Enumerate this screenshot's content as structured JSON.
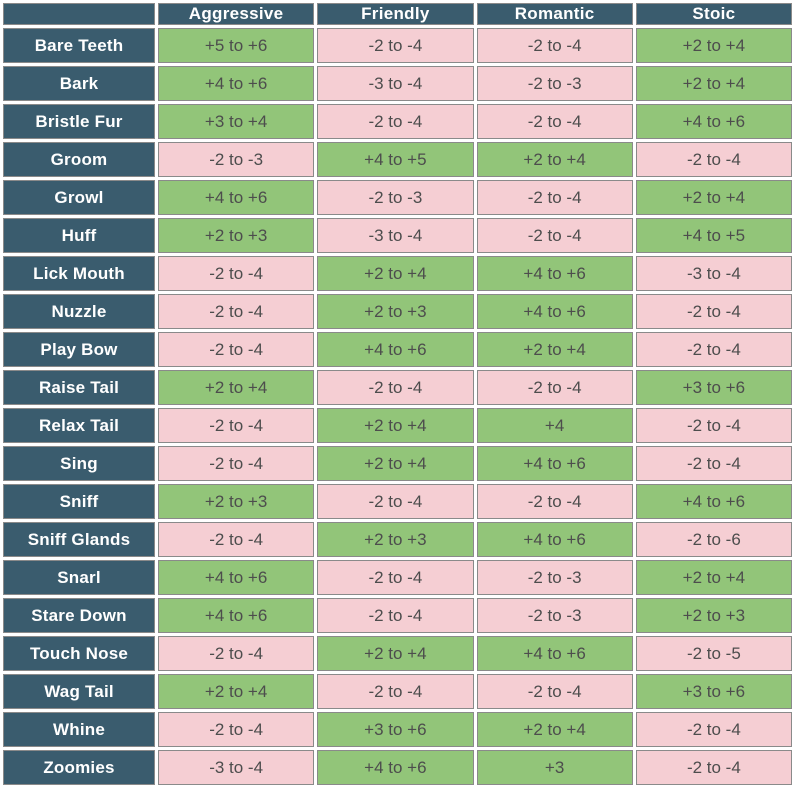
{
  "colors": {
    "header_bg": "#3a5c6e",
    "header_text": "#ffffff",
    "positive_bg": "#92c579",
    "negative_bg": "#f5ced3",
    "value_text": "#4d4d4d",
    "cell_border": "#8a8a8a"
  },
  "chart_data": {
    "type": "table",
    "title": "",
    "corner_label": "",
    "columns": [
      "Aggressive",
      "Friendly",
      "Romantic",
      "Stoic"
    ],
    "legend": {
      "positive": "green cell (stat gain)",
      "negative": "pink cell (stat loss)"
    },
    "rows": [
      {
        "label": "Bare Teeth",
        "cells": [
          {
            "value": "+5 to +6",
            "tone": "positive"
          },
          {
            "value": "-2 to -4",
            "tone": "negative"
          },
          {
            "value": "-2 to -4",
            "tone": "negative"
          },
          {
            "value": "+2 to +4",
            "tone": "positive"
          }
        ]
      },
      {
        "label": "Bark",
        "cells": [
          {
            "value": "+4 to +6",
            "tone": "positive"
          },
          {
            "value": "-3 to -4",
            "tone": "negative"
          },
          {
            "value": "-2 to -3",
            "tone": "negative"
          },
          {
            "value": "+2 to +4",
            "tone": "positive"
          }
        ]
      },
      {
        "label": "Bristle Fur",
        "cells": [
          {
            "value": "+3 to +4",
            "tone": "positive"
          },
          {
            "value": "-2 to -4",
            "tone": "negative"
          },
          {
            "value": "-2 to -4",
            "tone": "negative"
          },
          {
            "value": "+4 to +6",
            "tone": "positive"
          }
        ]
      },
      {
        "label": "Groom",
        "cells": [
          {
            "value": "-2 to -3",
            "tone": "negative"
          },
          {
            "value": "+4 to +5",
            "tone": "positive"
          },
          {
            "value": "+2 to +4",
            "tone": "positive"
          },
          {
            "value": "-2 to -4",
            "tone": "negative"
          }
        ]
      },
      {
        "label": "Growl",
        "cells": [
          {
            "value": "+4 to +6",
            "tone": "positive"
          },
          {
            "value": "-2 to -3",
            "tone": "negative"
          },
          {
            "value": "-2 to -4",
            "tone": "negative"
          },
          {
            "value": "+2 to +4",
            "tone": "positive"
          }
        ]
      },
      {
        "label": "Huff",
        "cells": [
          {
            "value": "+2 to +3",
            "tone": "positive"
          },
          {
            "value": "-3 to -4",
            "tone": "negative"
          },
          {
            "value": "-2 to -4",
            "tone": "negative"
          },
          {
            "value": "+4 to +5",
            "tone": "positive"
          }
        ]
      },
      {
        "label": "Lick Mouth",
        "cells": [
          {
            "value": "-2 to -4",
            "tone": "negative"
          },
          {
            "value": "+2 to +4",
            "tone": "positive"
          },
          {
            "value": "+4 to +6",
            "tone": "positive"
          },
          {
            "value": "-3 to -4",
            "tone": "negative"
          }
        ]
      },
      {
        "label": "Nuzzle",
        "cells": [
          {
            "value": "-2 to -4",
            "tone": "negative"
          },
          {
            "value": "+2 to +3",
            "tone": "positive"
          },
          {
            "value": "+4 to +6",
            "tone": "positive"
          },
          {
            "value": "-2 to -4",
            "tone": "negative"
          }
        ]
      },
      {
        "label": "Play Bow",
        "cells": [
          {
            "value": "-2 to -4",
            "tone": "negative"
          },
          {
            "value": "+4 to +6",
            "tone": "positive"
          },
          {
            "value": "+2 to +4",
            "tone": "positive"
          },
          {
            "value": "-2 to -4",
            "tone": "negative"
          }
        ]
      },
      {
        "label": "Raise Tail",
        "cells": [
          {
            "value": "+2 to +4",
            "tone": "positive"
          },
          {
            "value": "-2 to -4",
            "tone": "negative"
          },
          {
            "value": "-2 to -4",
            "tone": "negative"
          },
          {
            "value": "+3 to +6",
            "tone": "positive"
          }
        ]
      },
      {
        "label": "Relax Tail",
        "cells": [
          {
            "value": "-2 to -4",
            "tone": "negative"
          },
          {
            "value": "+2 to +4",
            "tone": "positive"
          },
          {
            "value": "+4",
            "tone": "positive"
          },
          {
            "value": "-2 to -4",
            "tone": "negative"
          }
        ]
      },
      {
        "label": "Sing",
        "cells": [
          {
            "value": "-2 to -4",
            "tone": "negative"
          },
          {
            "value": "+2 to +4",
            "tone": "positive"
          },
          {
            "value": "+4 to +6",
            "tone": "positive"
          },
          {
            "value": "-2 to -4",
            "tone": "negative"
          }
        ]
      },
      {
        "label": "Sniff",
        "cells": [
          {
            "value": "+2 to +3",
            "tone": "positive"
          },
          {
            "value": "-2 to -4",
            "tone": "negative"
          },
          {
            "value": "-2 to -4",
            "tone": "negative"
          },
          {
            "value": "+4 to +6",
            "tone": "positive"
          }
        ]
      },
      {
        "label": "Sniff Glands",
        "cells": [
          {
            "value": "-2 to -4",
            "tone": "negative"
          },
          {
            "value": "+2 to +3",
            "tone": "positive"
          },
          {
            "value": "+4 to +6",
            "tone": "positive"
          },
          {
            "value": "-2 to -6",
            "tone": "negative"
          }
        ]
      },
      {
        "label": "Snarl",
        "cells": [
          {
            "value": "+4 to +6",
            "tone": "positive"
          },
          {
            "value": "-2 to -4",
            "tone": "negative"
          },
          {
            "value": "-2 to -3",
            "tone": "negative"
          },
          {
            "value": "+2 to +4",
            "tone": "positive"
          }
        ]
      },
      {
        "label": "Stare Down",
        "cells": [
          {
            "value": "+4 to +6",
            "tone": "positive"
          },
          {
            "value": "-2 to -4",
            "tone": "negative"
          },
          {
            "value": "-2 to -3",
            "tone": "negative"
          },
          {
            "value": "+2 to +3",
            "tone": "positive"
          }
        ]
      },
      {
        "label": "Touch Nose",
        "cells": [
          {
            "value": "-2 to -4",
            "tone": "negative"
          },
          {
            "value": "+2 to +4",
            "tone": "positive"
          },
          {
            "value": "+4 to +6",
            "tone": "positive"
          },
          {
            "value": "-2 to -5",
            "tone": "negative"
          }
        ]
      },
      {
        "label": "Wag Tail",
        "cells": [
          {
            "value": "+2 to +4",
            "tone": "positive"
          },
          {
            "value": "-2 to -4",
            "tone": "negative"
          },
          {
            "value": "-2 to -4",
            "tone": "negative"
          },
          {
            "value": "+3 to +6",
            "tone": "positive"
          }
        ]
      },
      {
        "label": "Whine",
        "cells": [
          {
            "value": "-2 to -4",
            "tone": "negative"
          },
          {
            "value": "+3 to +6",
            "tone": "positive"
          },
          {
            "value": "+2 to +4",
            "tone": "positive"
          },
          {
            "value": "-2 to -4",
            "tone": "negative"
          }
        ]
      },
      {
        "label": "Zoomies",
        "cells": [
          {
            "value": "-3 to -4",
            "tone": "negative"
          },
          {
            "value": "+4 to +6",
            "tone": "positive"
          },
          {
            "value": "+3",
            "tone": "positive"
          },
          {
            "value": "-2 to -4",
            "tone": "negative"
          }
        ]
      }
    ]
  }
}
